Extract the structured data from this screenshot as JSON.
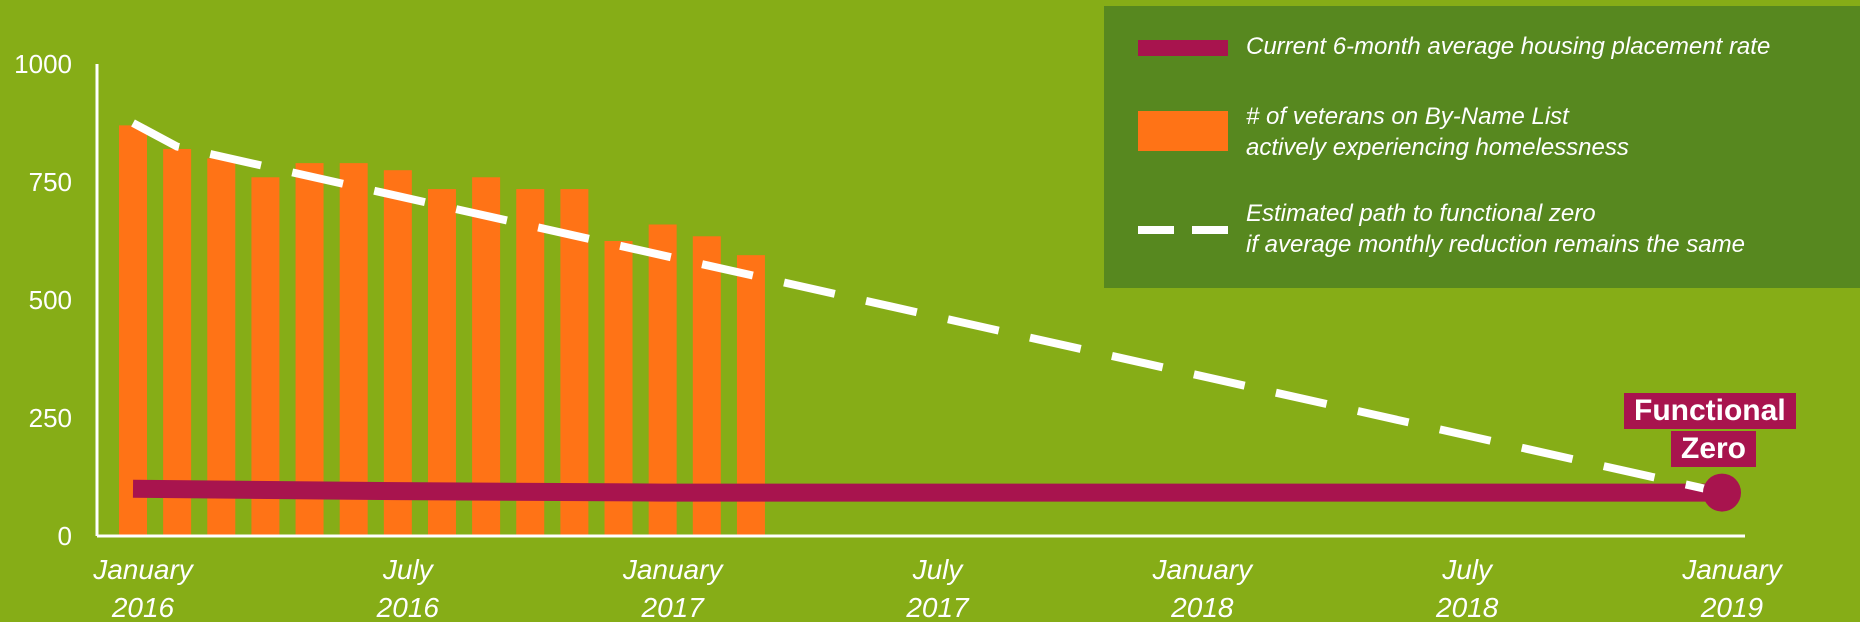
{
  "chart_data": {
    "type": "bar",
    "title": "",
    "xlabel": "",
    "ylabel": "",
    "ylim": [
      0,
      1000
    ],
    "y_ticks": [
      "0",
      "250",
      "500",
      "750",
      "1000"
    ],
    "x_tick_labels": [
      {
        "line1": "January",
        "line2": "2016",
        "month_index": 0
      },
      {
        "line1": "July",
        "line2": "2016",
        "month_index": 6
      },
      {
        "line1": "January",
        "line2": "2017",
        "month_index": 12
      },
      {
        "line1": "July",
        "line2": "2017",
        "month_index": 18
      },
      {
        "line1": "January",
        "line2": "2018",
        "month_index": 24
      },
      {
        "line1": "July",
        "line2": "2018",
        "month_index": 30
      },
      {
        "line1": "January",
        "line2": "2019",
        "month_index": 36
      }
    ],
    "series": [
      {
        "name": "# of veterans on By-Name List actively experiencing homelessness",
        "type": "bar",
        "color": "#ff7316",
        "month_index": [
          0,
          1,
          2,
          3,
          4,
          5,
          6,
          7,
          8,
          9,
          10,
          11,
          12,
          13,
          14
        ],
        "values": [
          870,
          820,
          800,
          760,
          790,
          790,
          775,
          735,
          760,
          735,
          735,
          625,
          660,
          635,
          595
        ]
      },
      {
        "name": "Current 6-month average housing placement rate",
        "type": "line",
        "color": "#a8144e",
        "month_index": [
          0,
          6,
          12,
          36
        ],
        "values": [
          100,
          95,
          92,
          92
        ]
      },
      {
        "name": "Estimated path to functional zero if average monthly reduction remains the same",
        "type": "line",
        "style": "dashed",
        "color": "#ffffff",
        "month_index": [
          0,
          1,
          36
        ],
        "values": [
          875,
          825,
          92
        ]
      }
    ],
    "annotation": {
      "line1": "Functional",
      "line2": "Zero",
      "month_index": 36,
      "value": 92
    },
    "legend_position": "top-right",
    "grid": false
  },
  "legend": {
    "line_label": "Current 6-month average housing placement rate",
    "bar_label_line1": "# of veterans on By-Name List",
    "bar_label_line2": "actively experiencing homelessness",
    "dash_label_line1": "Estimated path to functional zero",
    "dash_label_line2": "if average monthly reduction remains the same"
  },
  "colors": {
    "background": "#86ad17",
    "legend_background": "#57881f",
    "bars": "#ff7316",
    "placement_line": "#a8144e",
    "projection_line": "#ffffff",
    "axis": "#ffffff"
  }
}
